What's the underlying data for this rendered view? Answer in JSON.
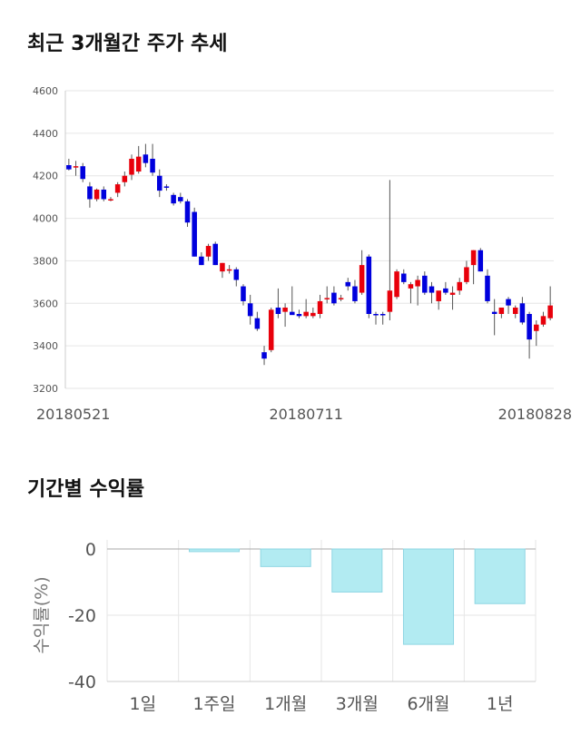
{
  "sections": {
    "price_title": "최근 3개월간 주가 추세",
    "returns_title": "기간별 수익률"
  },
  "chart_data": [
    {
      "type": "candlestick",
      "title": "최근 3개월간 주가 추세",
      "ylim": [
        3200,
        4600
      ],
      "yticks": [
        3200,
        3400,
        3600,
        3800,
        4000,
        4200,
        4400,
        4600
      ],
      "x_tick_labels": [
        {
          "label": "20180521",
          "index": 0
        },
        {
          "label": "20180711",
          "index": 34
        },
        {
          "label": "20180828",
          "index": 66
        }
      ],
      "grid": true,
      "colors": {
        "up": "#e8000b",
        "down": "#0000dd",
        "wick": "#555555",
        "grid": "#e6e6e6"
      },
      "ohlc": [
        [
          4250,
          4280,
          4225,
          4230
        ],
        [
          4240,
          4270,
          4200,
          4245
        ],
        [
          4245,
          4260,
          4170,
          4185
        ],
        [
          4150,
          4170,
          4050,
          4090
        ],
        [
          4090,
          4140,
          4080,
          4135
        ],
        [
          4135,
          4150,
          4080,
          4090
        ],
        [
          4085,
          4100,
          4080,
          4090
        ],
        [
          4120,
          4170,
          4100,
          4160
        ],
        [
          4170,
          4220,
          4150,
          4200
        ],
        [
          4205,
          4300,
          4180,
          4280
        ],
        [
          4220,
          4340,
          4210,
          4290
        ],
        [
          4300,
          4350,
          4240,
          4260
        ],
        [
          4280,
          4350,
          4200,
          4215
        ],
        [
          4200,
          4230,
          4100,
          4130
        ],
        [
          4150,
          4160,
          4130,
          4145
        ],
        [
          4110,
          4120,
          4060,
          4070
        ],
        [
          4100,
          4120,
          4070,
          4080
        ],
        [
          4080,
          4090,
          3960,
          3980
        ],
        [
          4030,
          4050,
          3820,
          3820
        ],
        [
          3820,
          3840,
          3780,
          3780
        ],
        [
          3820,
          3880,
          3800,
          3870
        ],
        [
          3880,
          3890,
          3780,
          3780
        ],
        [
          3750,
          3790,
          3720,
          3790
        ],
        [
          3760,
          3780,
          3740,
          3760
        ],
        [
          3760,
          3770,
          3680,
          3710
        ],
        [
          3680,
          3690,
          3590,
          3610
        ],
        [
          3600,
          3640,
          3500,
          3540
        ],
        [
          3530,
          3560,
          3470,
          3480
        ],
        [
          3370,
          3400,
          3310,
          3340
        ],
        [
          3380,
          3580,
          3370,
          3570
        ],
        [
          3580,
          3670,
          3530,
          3550
        ],
        [
          3560,
          3600,
          3490,
          3580
        ],
        [
          3560,
          3680,
          3550,
          3545
        ],
        [
          3550,
          3570,
          3530,
          3540
        ],
        [
          3540,
          3620,
          3530,
          3560
        ],
        [
          3540,
          3580,
          3530,
          3555
        ],
        [
          3550,
          3640,
          3530,
          3610
        ],
        [
          3620,
          3680,
          3600,
          3625
        ],
        [
          3650,
          3680,
          3590,
          3600
        ],
        [
          3625,
          3640,
          3610,
          3625
        ],
        [
          3700,
          3720,
          3660,
          3680
        ],
        [
          3680,
          3710,
          3600,
          3610
        ],
        [
          3650,
          3850,
          3640,
          3780
        ],
        [
          3820,
          3830,
          3530,
          3550
        ],
        [
          3550,
          3560,
          3500,
          3545
        ],
        [
          3550,
          3560,
          3500,
          3545
        ],
        [
          3560,
          4180,
          3520,
          3660
        ],
        [
          3630,
          3760,
          3620,
          3750
        ],
        [
          3740,
          3760,
          3690,
          3700
        ],
        [
          3670,
          3700,
          3600,
          3690
        ],
        [
          3680,
          3730,
          3590,
          3710
        ],
        [
          3730,
          3750,
          3640,
          3650
        ],
        [
          3680,
          3700,
          3600,
          3650
        ],
        [
          3610,
          3650,
          3570,
          3660
        ],
        [
          3670,
          3700,
          3640,
          3650
        ],
        [
          3640,
          3680,
          3570,
          3650
        ],
        [
          3660,
          3720,
          3640,
          3700
        ],
        [
          3700,
          3800,
          3690,
          3770
        ],
        [
          3780,
          3850,
          3690,
          3850
        ],
        [
          3850,
          3860,
          3750,
          3750
        ],
        [
          3730,
          3760,
          3600,
          3610
        ],
        [
          3560,
          3620,
          3450,
          3550
        ],
        [
          3550,
          3570,
          3530,
          3580
        ],
        [
          3620,
          3630,
          3550,
          3590
        ],
        [
          3550,
          3590,
          3530,
          3580
        ],
        [
          3600,
          3630,
          3500,
          3510
        ],
        [
          3550,
          3560,
          3340,
          3430
        ],
        [
          3470,
          3520,
          3400,
          3500
        ],
        [
          3500,
          3560,
          3490,
          3540
        ],
        [
          3530,
          3680,
          3520,
          3590
        ]
      ]
    },
    {
      "type": "bar",
      "title": "기간별 수익률",
      "ylabel": "수익률(%)",
      "categories": [
        "1일",
        "1주일",
        "1개월",
        "3개월",
        "6개월",
        "1년"
      ],
      "values": [
        0,
        -0.8,
        -5.3,
        -13.0,
        -28.8,
        -16.5
      ],
      "ylim": [
        -40,
        0
      ],
      "yticks": [
        0,
        -20,
        -40
      ],
      "grid": true,
      "colors": {
        "bar": "#b2ebf2",
        "bar_edge": "#8fd6e3",
        "grid": "#e6e6e6"
      }
    }
  ]
}
